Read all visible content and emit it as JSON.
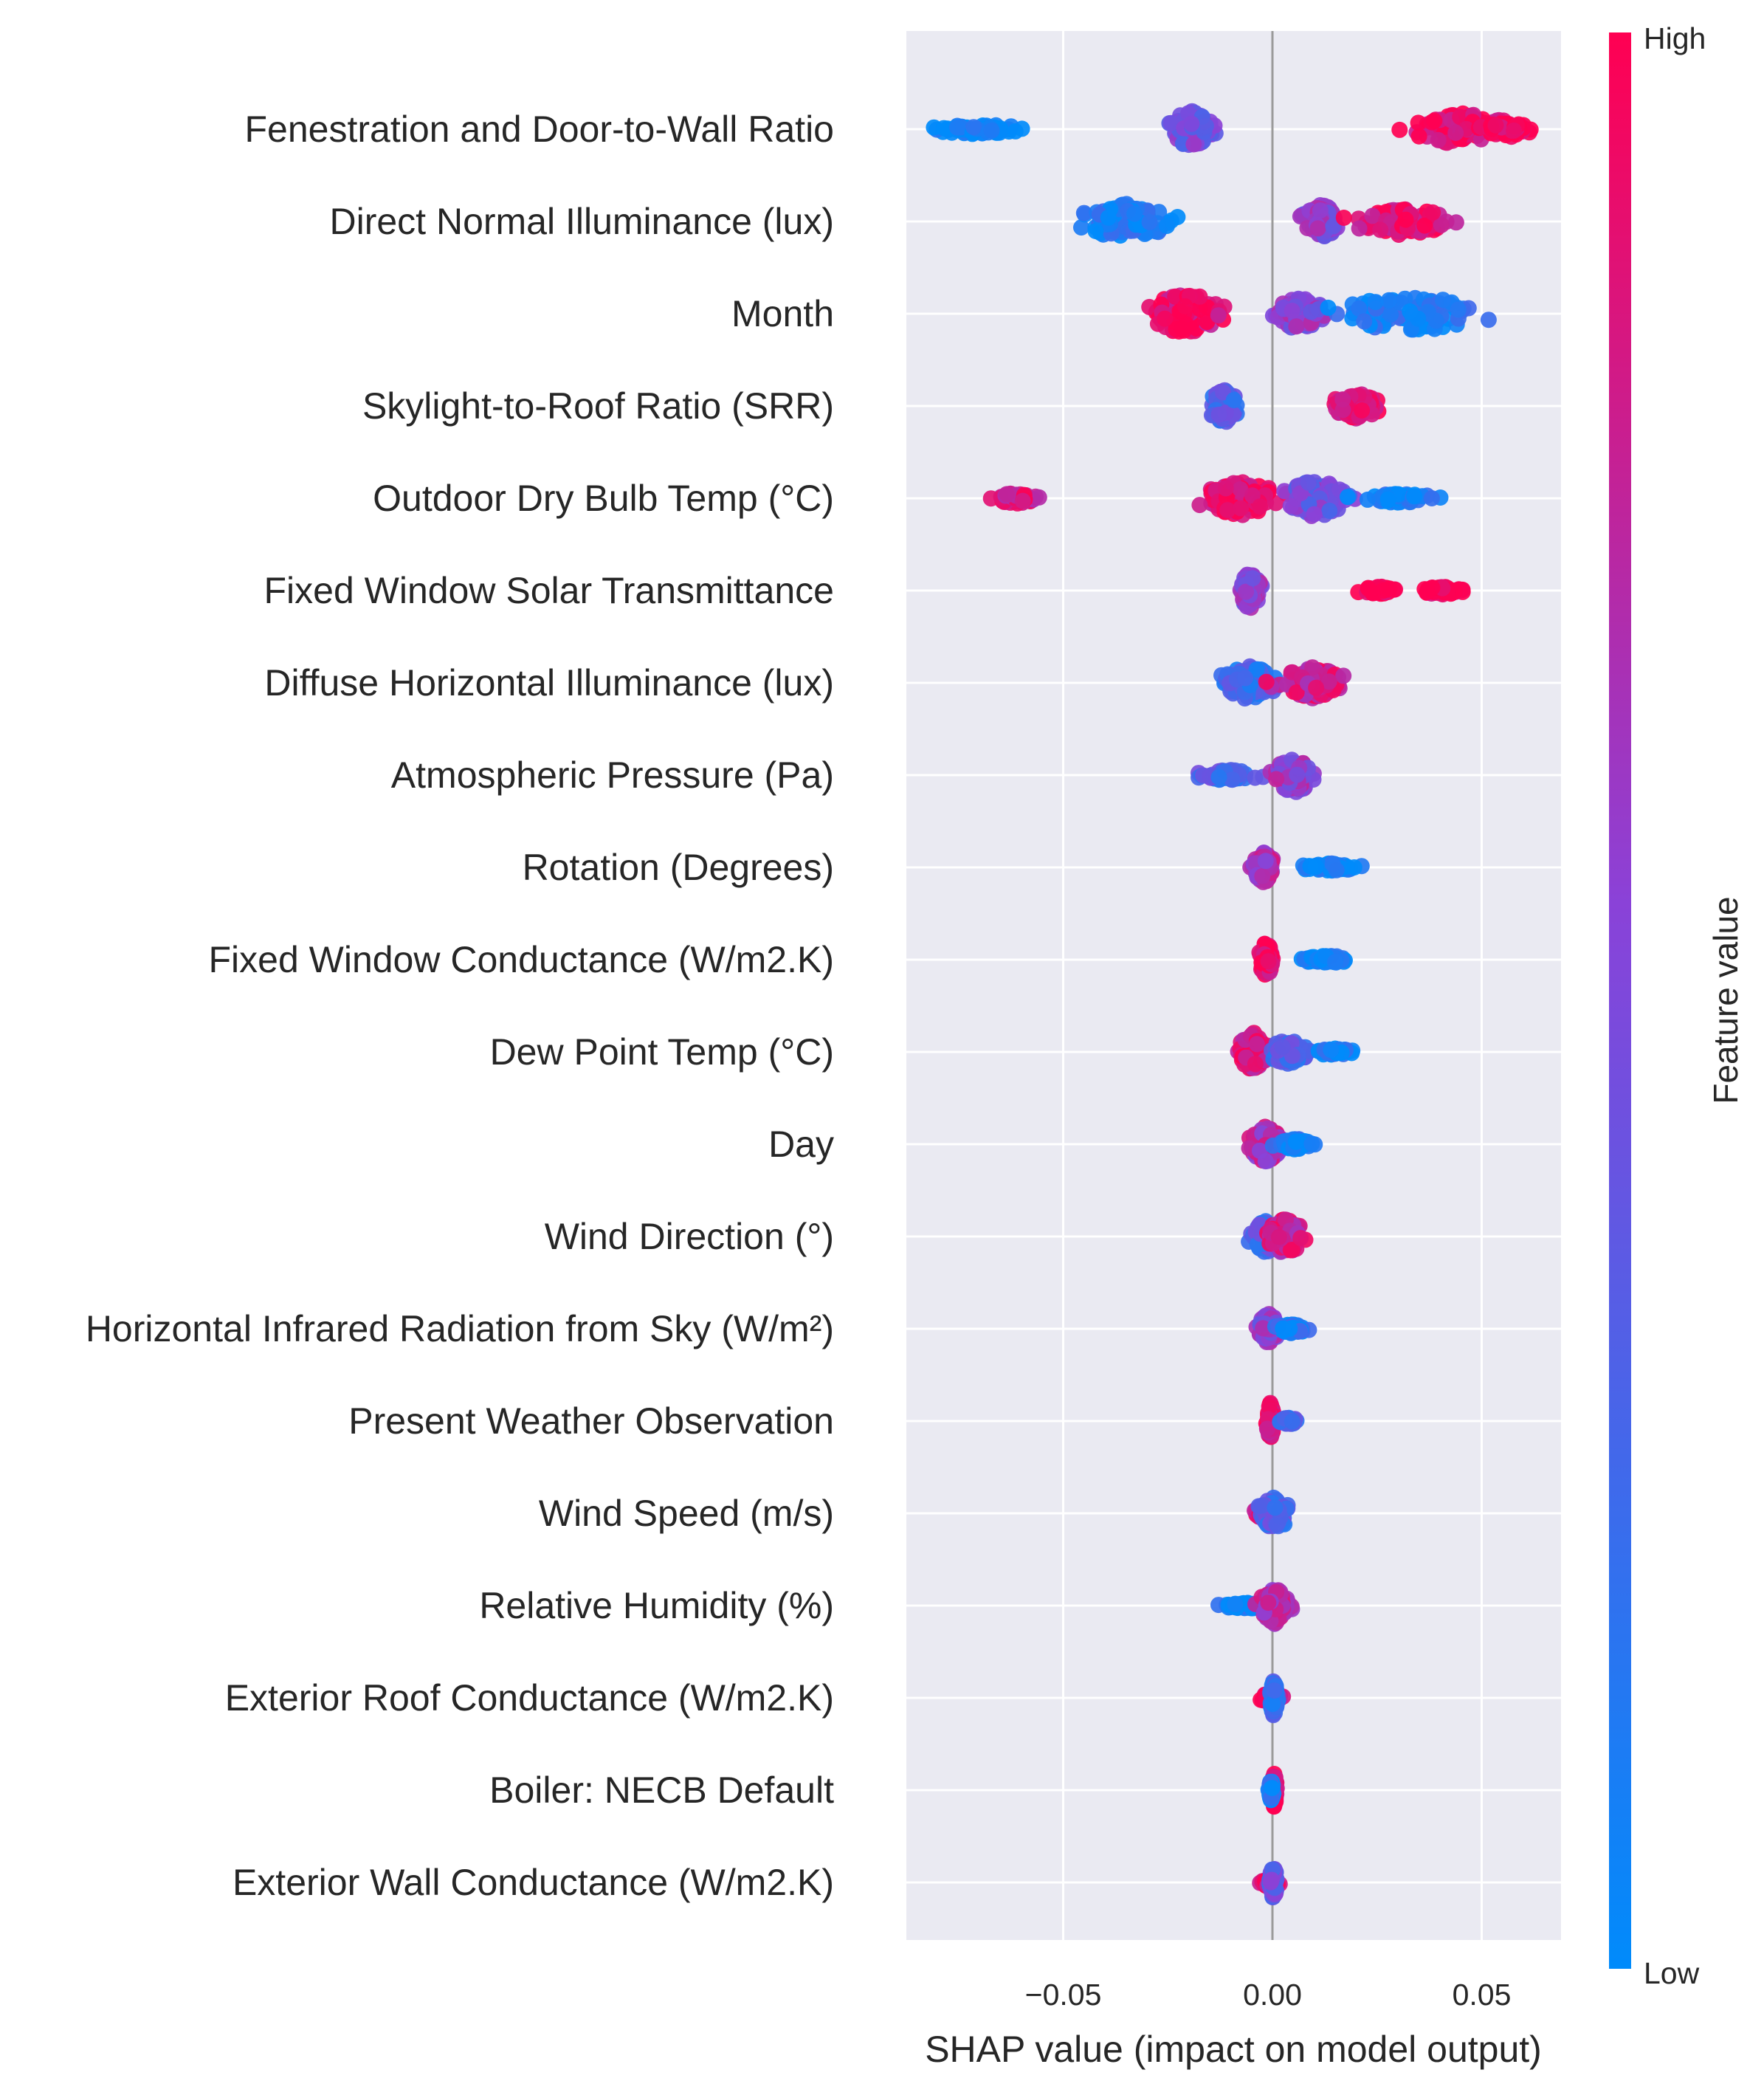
{
  "chart_data": {
    "type": "scatter",
    "subtype": "shap-beeswarm",
    "title": "",
    "xlabel": "SHAP value (impact on model output)",
    "xlim": [
      -0.088,
      0.069
    ],
    "xticks": [
      {
        "value": -0.05,
        "label": "−0.05"
      },
      {
        "value": 0.0,
        "label": "0.00"
      },
      {
        "value": 0.05,
        "label": "0.05"
      }
    ],
    "grid": true,
    "colorbar": {
      "title": "Feature value",
      "high_label": "High",
      "low_label": "Low",
      "low_color": "#008bfb",
      "high_color": "#ff0052"
    },
    "features": [
      {
        "name": "Fenestration and Door-to-Wall Ratio",
        "clusters": [
          {
            "center": -0.0705,
            "spread": 0.0135,
            "width": 0.11,
            "value": 0.0
          },
          {
            "center": -0.0195,
            "spread": 0.0055,
            "width": 0.4,
            "value": 0.45
          },
          {
            "center": 0.045,
            "spread": 0.0125,
            "width": 0.36,
            "value": 0.95
          },
          {
            "center": 0.056,
            "spread": 0.007,
            "width": 0.14,
            "value": 1.0
          }
        ]
      },
      {
        "name": "Direct Normal Illuminance (lux)",
        "clusters": [
          {
            "center": -0.0355,
            "spread": 0.0115,
            "width": 0.4,
            "value": 0.08
          },
          {
            "center": 0.012,
            "spread": 0.0045,
            "width": 0.38,
            "value": 0.55
          },
          {
            "center": 0.031,
            "spread": 0.0125,
            "width": 0.3,
            "value": 0.92
          }
        ]
      },
      {
        "name": "Month",
        "clusters": [
          {
            "center": -0.0205,
            "spread": 0.0095,
            "width": 0.46,
            "value": 0.92
          },
          {
            "center": 0.0065,
            "spread": 0.0055,
            "width": 0.38,
            "value": 0.55
          },
          {
            "center": 0.033,
            "spread": 0.018,
            "width": 0.4,
            "value": 0.1
          }
        ]
      },
      {
        "name": "Skylight-to-Roof Ratio (SRR)",
        "clusters": [
          {
            "center": -0.0115,
            "spread": 0.0035,
            "width": 0.38,
            "value": 0.3
          },
          {
            "center": 0.02,
            "spread": 0.0055,
            "width": 0.3,
            "value": 0.92
          }
        ]
      },
      {
        "name": "Outdoor Dry Bulb Temp (°C)",
        "clusters": [
          {
            "center": -0.0615,
            "spread": 0.0045,
            "width": 0.12,
            "value": 0.85
          },
          {
            "center": -0.0075,
            "spread": 0.0095,
            "width": 0.38,
            "value": 0.92
          },
          {
            "center": 0.0105,
            "spread": 0.0075,
            "width": 0.42,
            "value": 0.45
          },
          {
            "center": 0.03,
            "spread": 0.0095,
            "width": 0.1,
            "value": 0.05
          }
        ]
      },
      {
        "name": "Fixed Window Solar Transmittance",
        "clusters": [
          {
            "center": -0.0055,
            "spread": 0.0025,
            "width": 0.4,
            "value": 0.55
          },
          {
            "center": 0.0255,
            "spread": 0.0045,
            "width": 0.09,
            "value": 1.0
          },
          {
            "center": 0.0405,
            "spread": 0.005,
            "width": 0.09,
            "value": 1.0
          }
        ]
      },
      {
        "name": "Diffuse Horizontal Illuminance (lux)",
        "clusters": [
          {
            "center": -0.0055,
            "spread": 0.0065,
            "width": 0.38,
            "value": 0.25
          },
          {
            "center": 0.0095,
            "spread": 0.0085,
            "width": 0.34,
            "value": 0.8
          }
        ]
      },
      {
        "name": "Atmospheric Pressure (Pa)",
        "clusters": [
          {
            "center": -0.0105,
            "spread": 0.0075,
            "width": 0.12,
            "value": 0.3
          },
          {
            "center": 0.005,
            "spread": 0.0045,
            "width": 0.42,
            "value": 0.6
          }
        ]
      },
      {
        "name": "Rotation (Degrees)",
        "clusters": [
          {
            "center": -0.002,
            "spread": 0.0025,
            "width": 0.34,
            "value": 0.7
          },
          {
            "center": 0.0135,
            "spread": 0.0065,
            "width": 0.09,
            "value": 0.05
          }
        ]
      },
      {
        "name": "Fixed Window Conductance (W/m2.K)",
        "clusters": [
          {
            "center": -0.0015,
            "spread": 0.0015,
            "width": 0.4,
            "value": 0.95
          },
          {
            "center": 0.0135,
            "spread": 0.0055,
            "width": 0.09,
            "value": 0.05
          }
        ]
      },
      {
        "name": "Dew Point Temp (°C)",
        "clusters": [
          {
            "center": -0.0045,
            "spread": 0.0035,
            "width": 0.42,
            "value": 0.85
          },
          {
            "center": 0.0035,
            "spread": 0.0045,
            "width": 0.28,
            "value": 0.3
          },
          {
            "center": 0.0145,
            "spread": 0.0045,
            "width": 0.08,
            "value": 0.05
          }
        ]
      },
      {
        "name": "Day",
        "clusters": [
          {
            "center": -0.0015,
            "spread": 0.0045,
            "width": 0.4,
            "value": 0.7
          },
          {
            "center": 0.0055,
            "spread": 0.0045,
            "width": 0.12,
            "value": 0.1
          }
        ]
      },
      {
        "name": "Wind Direction (°)",
        "clusters": [
          {
            "center": -0.0015,
            "spread": 0.0035,
            "width": 0.36,
            "value": 0.3
          },
          {
            "center": 0.003,
            "spread": 0.0045,
            "width": 0.4,
            "value": 0.8
          }
        ]
      },
      {
        "name": "Horizontal Infrared Radiation from Sky (W/m²)",
        "clusters": [
          {
            "center": -0.001,
            "spread": 0.0025,
            "width": 0.36,
            "value": 0.55
          },
          {
            "center": 0.0045,
            "spread": 0.0045,
            "width": 0.1,
            "value": 0.1
          }
        ]
      },
      {
        "name": "Present Weather Observation",
        "clusters": [
          {
            "center": -0.0005,
            "spread": 0.0008,
            "width": 0.4,
            "value": 0.92
          },
          {
            "center": 0.004,
            "spread": 0.002,
            "width": 0.08,
            "value": 0.3
          }
        ]
      },
      {
        "name": "Wind Speed (m/s)",
        "clusters": [
          {
            "center": -0.0015,
            "spread": 0.0035,
            "width": 0.12,
            "value": 0.9
          },
          {
            "center": 0.0005,
            "spread": 0.0035,
            "width": 0.38,
            "value": 0.3
          }
        ]
      },
      {
        "name": "Relative Humidity (%)",
        "clusters": [
          {
            "center": -0.0065,
            "spread": 0.0055,
            "width": 0.07,
            "value": 0.05
          },
          {
            "center": 0.0005,
            "spread": 0.0035,
            "width": 0.4,
            "value": 0.7
          }
        ]
      },
      {
        "name": "Exterior Roof Conductance (W/m2.K)",
        "clusters": [
          {
            "center": -0.0005,
            "spread": 0.0025,
            "width": 0.1,
            "value": 0.9
          },
          {
            "center": 0.0003,
            "spread": 0.0008,
            "width": 0.4,
            "value": 0.2
          }
        ]
      },
      {
        "name": "Boiler: NECB Default",
        "clusters": [
          {
            "center": 0.0004,
            "spread": 0.0006,
            "width": 0.38,
            "value": 0.95
          },
          {
            "center": -0.0003,
            "spread": 0.0005,
            "width": 0.24,
            "value": 0.1
          }
        ]
      },
      {
        "name": "Exterior Wall Conductance (W/m2.K)",
        "clusters": [
          {
            "center": -0.0005,
            "spread": 0.0022,
            "width": 0.1,
            "value": 0.9
          },
          {
            "center": 0.0002,
            "spread": 0.0008,
            "width": 0.38,
            "value": 0.4
          }
        ]
      }
    ]
  }
}
